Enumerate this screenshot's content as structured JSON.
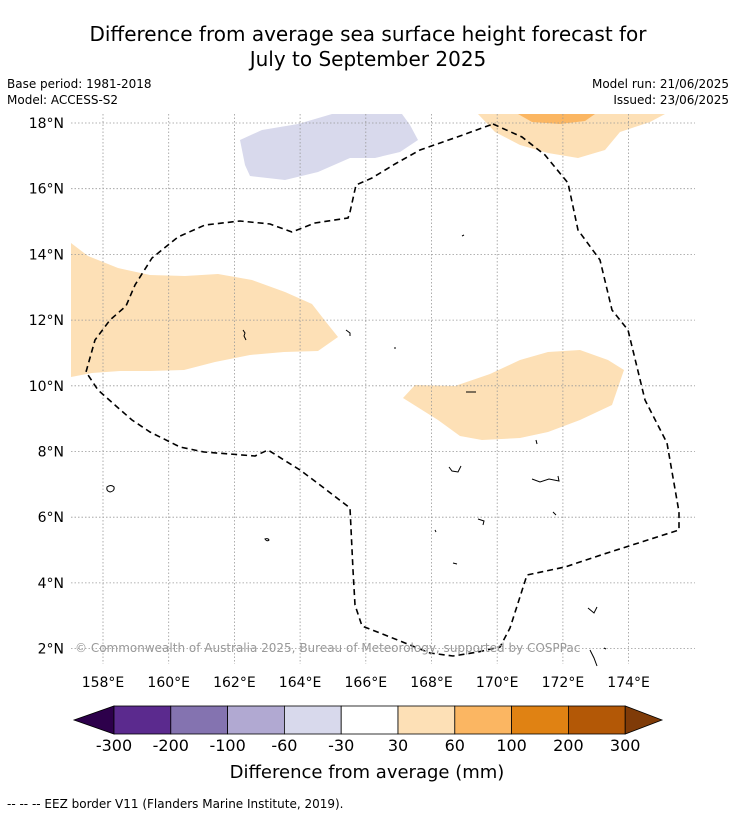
{
  "title": {
    "line1": "Difference from average sea surface height forecast for",
    "line2": "July to September 2025"
  },
  "info": {
    "base_period": "Base period: 1981-2018",
    "model": "Model: ACCESS-S2",
    "model_run": "Model run: 21/06/2025",
    "issued": "Issued: 23/06/2025"
  },
  "map": {
    "lon_ticks": [
      "158°E",
      "160°E",
      "162°E",
      "164°E",
      "166°E",
      "168°E",
      "170°E",
      "172°E",
      "174°E"
    ],
    "lat_ticks": [
      "2°N",
      "4°N",
      "6°N",
      "8°N",
      "10°N",
      "12°N",
      "14°N",
      "16°N",
      "18°N"
    ],
    "copyright": "© Commonwealth of Australia 2025, Bureau of Meteorology, supported by COSPPac",
    "gridlines": true
  },
  "colorbar": {
    "labels": [
      "-300",
      "-200",
      "-100",
      "-60",
      "-30",
      "30",
      "60",
      "100",
      "200",
      "300"
    ],
    "colors": [
      "#2d004b",
      "#5b2a8e",
      "#8473b0",
      "#b1a9d2",
      "#d8d9ec",
      "#ffffff",
      "#fde0b6",
      "#fbb662",
      "#e08213",
      "#b35806",
      "#7f3b08"
    ],
    "title": "Difference from average (mm)"
  },
  "legend_note": "--  --  -- EEZ border V11 (Flanders Marine Institute, 2019)."
}
